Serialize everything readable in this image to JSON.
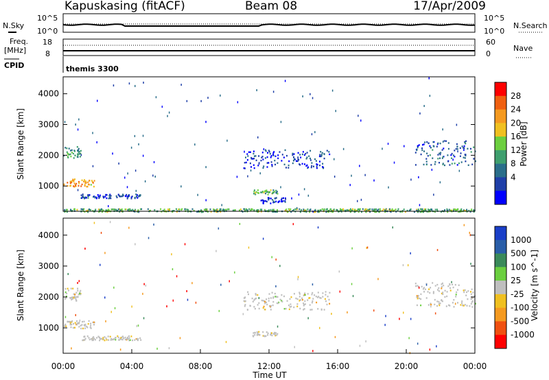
{
  "header": {
    "station": "Kapuskasing (fitACF)",
    "beam": "Beam 08",
    "date": "17/Apr/2009"
  },
  "strips": {
    "nsky_label": "N.Sky",
    "nsearch_label": "N.Search",
    "nsky_ticks": [
      "10^5",
      "10^0"
    ],
    "nsearch_ticks": [
      "10^5",
      "10^0"
    ],
    "freq_label_top": "Freq.",
    "freq_label_bottom": "[MHz]",
    "freq_ticks": [
      "18",
      "8"
    ],
    "nave_label": "Nave",
    "nave_ticks": [
      "60",
      "0"
    ],
    "cpid_label": "CPID",
    "cpid_value": "themis 3300"
  },
  "colors": {
    "power_scale": [
      "#0000ff",
      "#1f3fa8",
      "#2a6e8a",
      "#3f9f6e",
      "#6ccf3f",
      "#f0c020",
      "#f59a20",
      "#f06010",
      "#ff0000"
    ],
    "velocity_scale": [
      "#1a3fc8",
      "#2a5ea8",
      "#3a8a5a",
      "#6bcf3f",
      "#bfbfbf",
      "#f0c020",
      "#f59a20",
      "#f05010",
      "#ff0000"
    ]
  },
  "chart_data": [
    {
      "type": "heatmap",
      "name": "power-panel",
      "ylabel": "Slant Range [km]",
      "ylim": [
        180,
        4550
      ],
      "xlim_hours": [
        0,
        24
      ],
      "yticks": [
        1000,
        2000,
        3000,
        4000
      ],
      "colorbar": {
        "label": "Power [dB]",
        "ticks": [
          "4",
          "8",
          "12",
          "16",
          "20",
          "24",
          "28"
        ],
        "range": [
          0,
          32
        ]
      },
      "regions": [
        {
          "x": [
            0.0,
            1.0
          ],
          "y": [
            1900,
            2300
          ],
          "value": 12
        },
        {
          "x": [
            0.0,
            1.8
          ],
          "y": [
            1000,
            1250
          ],
          "value": 22
        },
        {
          "x": [
            1.0,
            4.5
          ],
          "y": [
            620,
            760
          ],
          "value": 6
        },
        {
          "x": [
            10.5,
            15.5
          ],
          "y": [
            1600,
            2200
          ],
          "value": 5
        },
        {
          "x": [
            11.0,
            12.5
          ],
          "y": [
            750,
            900
          ],
          "value": 14
        },
        {
          "x": [
            11.5,
            13.0
          ],
          "y": [
            450,
            650
          ],
          "value": 4
        },
        {
          "x": [
            20.5,
            24.0
          ],
          "y": [
            1700,
            2500
          ],
          "value": 7
        },
        {
          "x": [
            0.0,
            24.0
          ],
          "y": [
            180,
            280
          ],
          "value": 14
        }
      ]
    },
    {
      "type": "heatmap",
      "name": "velocity-panel",
      "xlabel": "Time UT",
      "ylabel": "Slant Range [km]",
      "ylim": [
        180,
        4550
      ],
      "xlim_hours": [
        0,
        24
      ],
      "yticks": [
        1000,
        2000,
        3000,
        4000
      ],
      "xticks": [
        "00:00",
        "04:00",
        "08:00",
        "12:00",
        "16:00",
        "20:00",
        "00:00"
      ],
      "colorbar": {
        "label": "Velocity [m s^-1]",
        "ticks": [
          "1000",
          "500",
          "100",
          "25",
          "-25",
          "-100",
          "-500",
          "-1000"
        ]
      },
      "regions": [
        {
          "x": [
            0.0,
            1.0
          ],
          "y": [
            1900,
            2300
          ],
          "value": 0
        },
        {
          "x": [
            0.0,
            1.8
          ],
          "y": [
            1000,
            1250
          ],
          "value": 0
        },
        {
          "x": [
            1.0,
            4.5
          ],
          "y": [
            620,
            760
          ],
          "value": 0
        },
        {
          "x": [
            10.5,
            15.5
          ],
          "y": [
            1600,
            2200
          ],
          "value": 0
        },
        {
          "x": [
            11.0,
            12.5
          ],
          "y": [
            750,
            900
          ],
          "value": 0
        },
        {
          "x": [
            20.5,
            24.0
          ],
          "y": [
            1700,
            2500
          ],
          "value": 0
        }
      ]
    }
  ]
}
